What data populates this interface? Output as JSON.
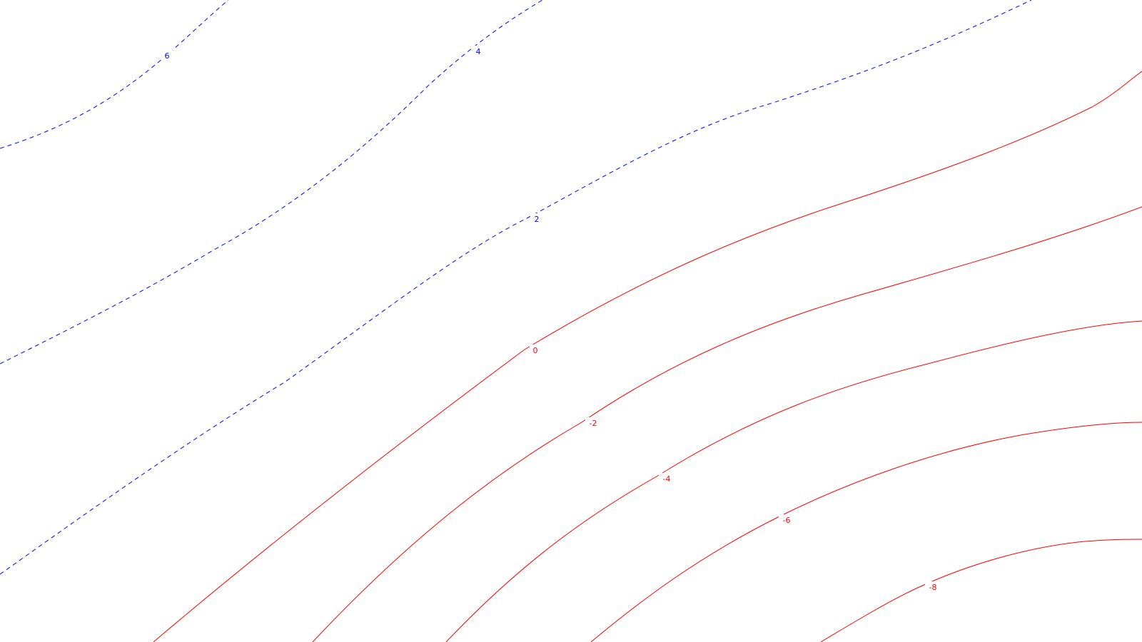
{
  "contours": [
    {
      "level": "6",
      "label": "6",
      "style": "dashed",
      "color": "#0000ff"
    },
    {
      "level": "4",
      "label": "4",
      "style": "dashed",
      "color": "#0000ff"
    },
    {
      "level": "2",
      "label": "2",
      "style": "dashed",
      "color": "#0000ff"
    },
    {
      "level": "0",
      "label": "0",
      "style": "solid",
      "color": "#ff0000"
    },
    {
      "level": "-2",
      "label": "-2",
      "style": "solid",
      "color": "#ff0000"
    },
    {
      "level": "-4",
      "label": "-4",
      "style": "solid",
      "color": "#ff0000"
    },
    {
      "level": "-6",
      "label": "-6",
      "style": "solid",
      "color": "#ff0000"
    },
    {
      "level": "-8",
      "label": "-8",
      "style": "solid",
      "color": "#ff0000"
    }
  ]
}
